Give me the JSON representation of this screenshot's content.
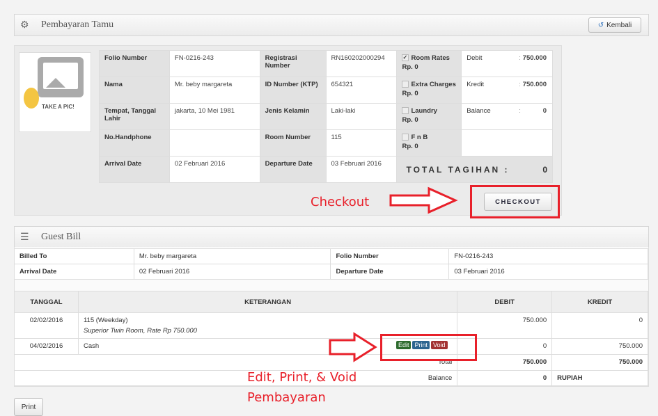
{
  "header": {
    "title": "Pembayaran Tamu",
    "back_label": "Kembali"
  },
  "photo": {
    "caption": "TAKE A PIC!"
  },
  "guest_info": {
    "rows": [
      [
        "Folio Number",
        "FN-0216-243",
        "Registrasi Number",
        "RN160202000294"
      ],
      [
        "Nama",
        "Mr. beby margareta",
        "ID Number (KTP)",
        "654321"
      ],
      [
        "Tempat, Tanggal Lahir",
        "jakarta, 10 Mei 1981",
        "Jenis Kelamin",
        "Laki-laki"
      ],
      [
        "No.Handphone",
        "",
        "Room Number",
        "115"
      ],
      [
        "Arrival Date",
        "02 Februari 2016",
        "Departure Date",
        "03 Februari 2016"
      ]
    ],
    "charges": [
      {
        "label": "Room Rates",
        "amount": "Rp. 0",
        "checked": true
      },
      {
        "label": "Extra Charges",
        "amount": "Rp. 0",
        "checked": false
      },
      {
        "label": "Laundry",
        "amount": "Rp. 0",
        "checked": false
      },
      {
        "label": "F n B",
        "amount": "Rp. 0",
        "checked": false
      }
    ],
    "summary": [
      {
        "label": "Debit",
        "sep": ":",
        "value": "750.000"
      },
      {
        "label": "Kredit",
        "sep": ":",
        "value": "750.000"
      },
      {
        "label": "Balance",
        "sep": ":",
        "value": "0"
      }
    ],
    "total_label": "TOTAL TAGIHAN :",
    "total_value": "0"
  },
  "checkout": {
    "button_label": "CHECKOUT",
    "annotation": "Checkout"
  },
  "guest_bill": {
    "title": "Guest Bill",
    "info": [
      [
        "Billed To",
        "Mr. beby margareta",
        "Folio Number",
        "FN-0216-243"
      ],
      [
        "Arrival Date",
        "02 Februari 2016",
        "Departure Date",
        "03 Februari 2016"
      ]
    ],
    "columns": [
      "TANGGAL",
      "KETERANGAN",
      "DEBIT",
      "KREDIT"
    ],
    "rows": [
      {
        "date": "02/02/2016",
        "desc": "115 (Weekday)",
        "sub": "Superior Twin Room, Rate Rp 750.000",
        "debit": "750.000",
        "kredit": "0"
      },
      {
        "date": "04/02/2016",
        "desc": "Cash",
        "sub": "",
        "debit": "0",
        "kredit": "750.000"
      }
    ],
    "actions": {
      "edit": "Edit",
      "print": "Print",
      "void": "Void"
    },
    "total_label": "Total",
    "total_debit": "750.000",
    "total_kredit": "750.000",
    "balance_label": "Balance",
    "balance_value": "0",
    "balance_currency": "RUPIAH"
  },
  "annotation2": {
    "line1": "Edit, Print, & Void",
    "line2": "Pembayaran"
  },
  "print_label": "Print"
}
